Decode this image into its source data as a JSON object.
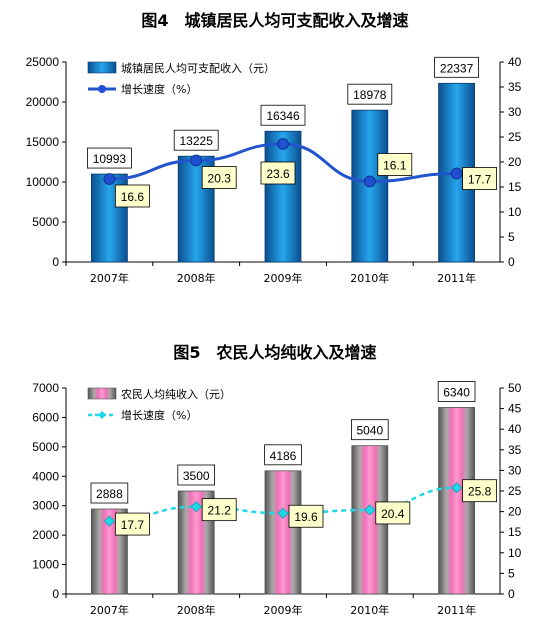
{
  "chart_data": [
    {
      "type": "bar",
      "title": "图4　城镇居民人均可支配收入及增速",
      "categories": [
        "2007年",
        "2008年",
        "2009年",
        "2010年",
        "2011年"
      ],
      "series": [
        {
          "name": "城镇居民人均可支配收入（元）",
          "type": "bar",
          "axis": "left",
          "values": [
            10993,
            13225,
            16346,
            18978,
            22337
          ],
          "labels": [
            "10993",
            "13225",
            "16346",
            "18978",
            "22337"
          ]
        },
        {
          "name": "增长速度（%）",
          "type": "line",
          "axis": "right",
          "values": [
            16.6,
            20.3,
            23.6,
            16.1,
            17.7
          ],
          "labels": [
            "16.6",
            "20.3",
            "23.6",
            "16.1",
            "17.7"
          ]
        }
      ],
      "ylim": [
        0,
        25000
      ],
      "yticks": [
        "0",
        "5000",
        "10000",
        "15000",
        "20000",
        "25000"
      ],
      "y2lim": [
        0,
        40
      ],
      "y2ticks": [
        "0",
        "5",
        "10",
        "15",
        "20",
        "25",
        "30",
        "35",
        "40"
      ],
      "legend": "top-left",
      "grid": false,
      "colors": {
        "bar": "#1a86cf",
        "line": "#2255cc",
        "marker": "#1f4fd0"
      }
    },
    {
      "type": "bar",
      "title": "图5　农民人均纯收入及增速",
      "categories": [
        "2007年",
        "2008年",
        "2009年",
        "2010年",
        "2011年"
      ],
      "series": [
        {
          "name": "农民人均纯收入（元）",
          "type": "bar",
          "axis": "left",
          "values": [
            2888,
            3500,
            4186,
            5040,
            6340
          ],
          "labels": [
            "2888",
            "3500",
            "4186",
            "5040",
            "6340"
          ]
        },
        {
          "name": "增长速度（%）",
          "type": "line",
          "axis": "right",
          "values": [
            17.7,
            21.2,
            19.6,
            20.4,
            25.8
          ],
          "labels": [
            "17.7",
            "21.2",
            "19.6",
            "20.4",
            "25.8"
          ]
        }
      ],
      "ylim": [
        0,
        7000
      ],
      "yticks": [
        "0",
        "1000",
        "2000",
        "3000",
        "4000",
        "5000",
        "6000",
        "7000"
      ],
      "y2lim": [
        0,
        50
      ],
      "y2ticks": [
        "0",
        "5",
        "10",
        "15",
        "20",
        "25",
        "30",
        "35",
        "40",
        "45",
        "50"
      ],
      "legend": "top-left",
      "grid": false,
      "colors": {
        "bar": "#f060b0",
        "line": "#20d8e8",
        "marker": "#20d8e8"
      }
    }
  ]
}
